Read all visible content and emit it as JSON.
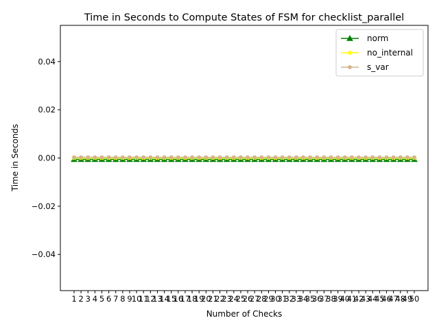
{
  "chart_data": {
    "type": "line",
    "title": "Time in Seconds to Compute States of FSM for checklist_parallel",
    "xlabel": "Number of Checks",
    "ylabel": "Time in Seconds",
    "ylim": [
      -0.055,
      0.055
    ],
    "yticks": [
      -0.04,
      -0.02,
      0.0,
      0.02,
      0.04
    ],
    "ytick_labels": [
      "−0.04",
      "−0.02",
      "0.00",
      "0.02",
      "0.04"
    ],
    "x": [
      1,
      2,
      3,
      4,
      5,
      6,
      7,
      8,
      9,
      10,
      11,
      12,
      13,
      14,
      15,
      16,
      17,
      18,
      19,
      20,
      21,
      22,
      23,
      24,
      25,
      26,
      27,
      28,
      29,
      30,
      31,
      32,
      33,
      34,
      35,
      36,
      37,
      38,
      39,
      40,
      41,
      42,
      43,
      44,
      45,
      46,
      47,
      48,
      49,
      50
    ],
    "grid": false,
    "legend_position": "top-right",
    "series": [
      {
        "name": "norm",
        "color": "#008000",
        "marker": "triangle",
        "values": [
          0,
          0,
          0,
          0,
          0,
          0,
          0,
          0,
          0,
          0,
          0,
          0,
          0,
          0,
          0,
          0,
          0,
          0,
          0,
          0,
          0,
          0,
          0,
          0,
          0,
          0,
          0,
          0,
          0,
          0,
          0,
          0,
          0,
          0,
          0,
          0,
          0,
          0,
          0,
          0,
          0,
          0,
          0,
          0,
          0,
          0,
          0,
          0,
          0,
          0
        ]
      },
      {
        "name": "no_internal",
        "color": "#ffff00",
        "marker": "star",
        "values": [
          0,
          0,
          0,
          0,
          0,
          0,
          0,
          0,
          0,
          0,
          0,
          0,
          0,
          0,
          0,
          0,
          0,
          0,
          0,
          0,
          0,
          0,
          0,
          0,
          0,
          0,
          0,
          0,
          0,
          0,
          0,
          0,
          0,
          0,
          0,
          0,
          0,
          0,
          0,
          0,
          0,
          0,
          0,
          0,
          0,
          0,
          0,
          0,
          0,
          0
        ]
      },
      {
        "name": "s_var",
        "color": "#d2b48c",
        "marker": "circle",
        "values": [
          0,
          0,
          0,
          0,
          0,
          0,
          0,
          0,
          0,
          0,
          0,
          0,
          0,
          0,
          0,
          0,
          0,
          0,
          0,
          0,
          0,
          0,
          0,
          0,
          0,
          0,
          0,
          0,
          0,
          0,
          0,
          0,
          0,
          0,
          0,
          0,
          0,
          0,
          0,
          0,
          0,
          0,
          0,
          0,
          0,
          0,
          0,
          0,
          0,
          0
        ]
      }
    ]
  }
}
